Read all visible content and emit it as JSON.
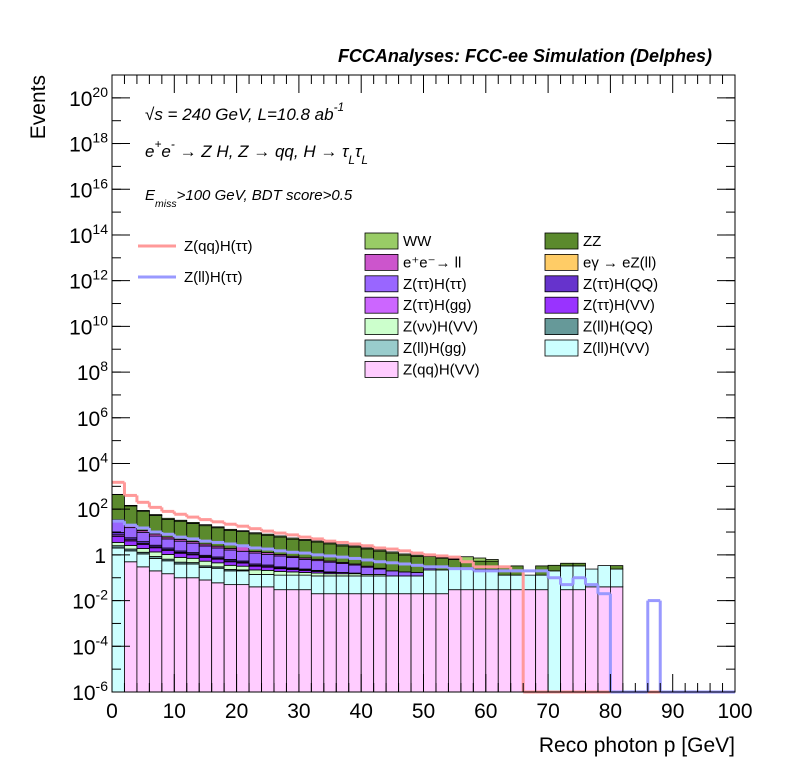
{
  "chart_data": {
    "type": "stacked_histogram",
    "title": "FCCAnalyses: FCC-ee Simulation (Delphes)",
    "x_label": "Reco photon p [GeV]",
    "y_label": "Events",
    "log_y": true,
    "annotations": [
      [
        {
          "text": "√s = 240 GeV, L=10.8 ab"
        },
        {
          "text": "-1",
          "pos": "sup"
        }
      ],
      [
        {
          "text": "e"
        },
        {
          "text": "+",
          "pos": "sup"
        },
        {
          "text": "e"
        },
        {
          "text": "-",
          "pos": "sup"
        },
        {
          "text": " → Z H, Z  → qq, H  → τ"
        },
        {
          "text": "L",
          "pos": "sub"
        },
        {
          "text": "τ"
        },
        {
          "text": "L",
          "pos": "sub"
        }
      ],
      [
        {
          "text": "E"
        },
        {
          "text": "miss",
          "pos": "sub"
        },
        {
          "text": ">100 GeV, BDT score>0.5"
        }
      ]
    ],
    "bins": [
      0,
      2,
      4,
      6,
      8,
      10,
      12,
      14,
      16,
      18,
      20,
      22,
      24,
      26,
      28,
      30,
      32,
      34,
      36,
      38,
      40,
      42,
      44,
      46,
      48,
      50,
      52,
      54,
      56,
      58,
      60,
      62,
      64,
      66,
      68,
      70,
      72,
      74,
      76,
      78,
      80,
      82,
      84,
      86,
      88,
      90,
      92,
      94,
      96,
      98,
      100
    ],
    "xlim": [
      0,
      100
    ],
    "xticks": [
      0,
      10,
      20,
      30,
      40,
      50,
      60,
      70,
      80,
      90,
      100
    ],
    "ylim": [
      1e-06,
      1e+21
    ],
    "yticks": [
      {
        "value": 1e-06,
        "label": "10",
        "exponent": "-6"
      },
      {
        "value": 0.0001,
        "label": "10",
        "exponent": "-4"
      },
      {
        "value": 0.01,
        "label": "10",
        "exponent": "-2"
      },
      1,
      {
        "value": 100.0,
        "label": "10",
        "exponent": "2"
      },
      {
        "value": 10000.0,
        "label": "10",
        "exponent": "4"
      },
      {
        "value": 1000000.0,
        "label": "10",
        "exponent": "6"
      },
      {
        "value": 100000000.0,
        "label": "10",
        "exponent": "8"
      },
      {
        "value": 10000000000.0,
        "label": "10",
        "exponent": "10"
      },
      {
        "value": 1000000000000.0,
        "label": "10",
        "exponent": "12"
      },
      {
        "value": 100000000000000.0,
        "label": "10",
        "exponent": "14"
      },
      {
        "value": 1e+16,
        "label": "10",
        "exponent": "16"
      },
      {
        "value": 1e+18,
        "label": "10",
        "exponent": "18"
      },
      {
        "value": 1e+20,
        "label": "10",
        "exponent": "20"
      }
    ],
    "series": [
      {
        "name": "WW",
        "color": "#99cc66",
        "values": [
          10,
          8,
          6,
          5,
          4,
          3,
          2.5,
          2,
          1.5,
          1.2,
          1,
          0.9,
          0.8,
          0.7,
          0.6,
          0.5,
          0.4,
          0.35,
          0.3,
          0.25,
          0.2,
          0.18,
          0.15,
          0.12,
          0.1,
          0.08,
          0.06,
          0.05,
          0.3,
          0.2,
          0.1,
          0,
          0,
          0,
          0,
          0,
          0,
          0,
          0,
          0,
          0,
          0,
          0,
          0,
          0,
          0,
          0,
          0,
          0,
          0
        ]
      },
      {
        "name": "ZZ",
        "color": "#5b8a2d",
        "values": [
          400,
          120,
          70,
          45,
          30,
          25,
          20,
          16,
          13,
          10,
          8,
          7,
          6,
          5,
          4,
          3.5,
          3,
          2.5,
          2,
          1.8,
          1.5,
          1.2,
          1,
          0.8,
          0.7,
          0.6,
          0.5,
          0.4,
          0.3,
          0.3,
          0.3,
          0.2,
          0.2,
          0,
          0.2,
          0.15,
          0.1,
          0.1,
          0,
          0,
          0.1,
          0,
          0,
          0,
          0,
          0,
          0,
          0,
          0,
          0
        ]
      },
      {
        "name": "e⁺e⁻→ ll",
        "color": "#cc55cc",
        "values": [
          5,
          3,
          2,
          1.5,
          1,
          0.8,
          0.6,
          0.5,
          0.4,
          0.3,
          1,
          0.2,
          0.2,
          0.15,
          0.1,
          0.1,
          0.08,
          0.06,
          0.05,
          0.04,
          0.03,
          0.02,
          0,
          0,
          0,
          0,
          0,
          0,
          0,
          0,
          0,
          0,
          0,
          0,
          0,
          0,
          0,
          0,
          0,
          0,
          0,
          0,
          0,
          0,
          0,
          0,
          0,
          0,
          0,
          0
        ]
      },
      {
        "name": "eγ → eZ(ll)",
        "color": "#ffcc66",
        "values": [
          0,
          0.02,
          0.02,
          0.02,
          0,
          0,
          0,
          0.02,
          0,
          0,
          0,
          0,
          0,
          0,
          0,
          0,
          0,
          0,
          0,
          0,
          0,
          0,
          0,
          0,
          0,
          0,
          0,
          0,
          0,
          0,
          0,
          0,
          0,
          0,
          0,
          0,
          0,
          0,
          0,
          0,
          0,
          0,
          0,
          0,
          0,
          0,
          0,
          0,
          0,
          0
        ]
      },
      {
        "name": "Z(ττ)H(ττ)",
        "color": "#9966ff",
        "values": [
          20,
          10,
          6,
          4,
          3,
          2.5,
          2,
          1.5,
          1.2,
          1,
          0.9,
          0.8,
          0.7,
          0.6,
          0.5,
          0.4,
          0.35,
          0.3,
          0.25,
          0.2,
          0.15,
          0.1,
          0.08,
          0.06,
          0.05,
          0.04,
          0,
          0,
          0,
          0,
          0,
          0,
          0,
          0,
          0,
          0,
          0,
          0,
          0,
          0,
          0,
          0,
          0,
          0,
          0,
          0,
          0,
          0,
          0,
          0
        ]
      },
      {
        "name": "Z(ττ)H(QQ)",
        "color": "#6633cc",
        "values": [
          2,
          1,
          0.6,
          0.4,
          0.3,
          0.2,
          0.15,
          0.1,
          0.1,
          0.08,
          0.06,
          0.05,
          0.04,
          0.03,
          0.02,
          0.02,
          0.01,
          0.01,
          0,
          0,
          0,
          0,
          0,
          0,
          0,
          0,
          0,
          0,
          0,
          0,
          0,
          0,
          0,
          0,
          0,
          0,
          0,
          0,
          0,
          0,
          0,
          0,
          0,
          0,
          0,
          0,
          0,
          0,
          0,
          0
        ]
      },
      {
        "name": "Z(ττ)H(gg)",
        "color": "#cc66ff",
        "values": [
          1,
          0.5,
          0.3,
          0.2,
          0.15,
          0.1,
          0.1,
          0.08,
          0.06,
          0.05,
          0.04,
          0.03,
          0.03,
          0.02,
          0.02,
          0.01,
          0.01,
          0,
          0,
          0,
          0,
          0,
          0,
          0,
          0,
          0,
          0,
          0,
          0,
          0,
          0,
          0,
          0,
          0,
          0,
          0,
          0,
          0,
          0,
          0,
          0,
          0,
          0,
          0,
          0,
          0,
          0,
          0,
          0,
          0
        ]
      },
      {
        "name": "Z(ττ)H(VV)",
        "color": "#9933ff",
        "values": [
          3,
          1.5,
          1,
          0.7,
          0.5,
          0.4,
          0.3,
          0.25,
          0.2,
          0.15,
          0.12,
          0.1,
          0.08,
          0.06,
          0.05,
          0.04,
          0.03,
          0.02,
          0.02,
          0.01,
          0,
          0,
          0,
          0,
          0,
          0,
          0,
          0,
          0,
          0,
          0,
          0,
          0,
          0,
          0,
          0,
          0,
          0,
          0,
          0,
          0,
          0,
          0,
          0,
          0,
          0,
          0,
          0,
          0,
          0
        ]
      },
      {
        "name": "Z(νν)H(VV)",
        "color": "#ccffcc",
        "values": [
          1,
          0.8,
          0.6,
          0.5,
          0.4,
          0.3,
          0.25,
          0.2,
          0.15,
          0.12,
          0.1,
          0.08,
          0.07,
          0.06,
          0.05,
          0.04,
          0.04,
          0.03,
          0.03,
          0.03,
          0.02,
          0.02,
          0,
          0,
          0,
          0,
          0,
          0,
          0,
          0,
          0,
          0,
          0,
          0,
          0,
          0,
          0,
          0,
          0,
          0,
          0,
          0,
          0,
          0,
          0,
          0,
          0,
          0,
          0,
          0
        ]
      },
      {
        "name": "Z(ll)H(QQ)",
        "color": "#669999",
        "values": [
          0.5,
          0.3,
          0.2,
          0.15,
          0.1,
          0.08,
          0.06,
          0.05,
          0.04,
          0.03,
          0.02,
          0,
          0,
          0,
          0,
          0,
          0,
          0,
          0,
          0,
          0,
          0,
          0,
          0,
          0,
          0,
          0,
          0,
          0,
          0,
          0,
          0,
          0,
          0,
          0,
          0,
          0,
          0,
          0,
          0,
          0,
          0,
          0,
          0,
          0,
          0,
          0,
          0,
          0,
          0
        ]
      },
      {
        "name": "Z(ll)H(gg)",
        "color": "#99cccc",
        "values": [
          0.02,
          0,
          0,
          0,
          0,
          0,
          0,
          0,
          0,
          0,
          0,
          0,
          0,
          0,
          0,
          0,
          0,
          0,
          0,
          0,
          0,
          0,
          0,
          0,
          0,
          0,
          0,
          0,
          0,
          0,
          0,
          0,
          0,
          0,
          0,
          0,
          0,
          0,
          0,
          0,
          0,
          0,
          0,
          0,
          0,
          0,
          0,
          0,
          0,
          0
        ]
      },
      {
        "name": "Z(ll)H(VV)",
        "color": "#ccffff",
        "values": [
          2,
          1,
          0.8,
          0.5,
          0.4,
          0.3,
          0.3,
          0.2,
          0.2,
          0.15,
          0.15,
          0.1,
          0.1,
          0.1,
          0.1,
          0.1,
          0.1,
          0.1,
          0.1,
          0.1,
          0.1,
          0.1,
          0.1,
          0.1,
          0.1,
          0.2,
          0.2,
          0.2,
          0.2,
          0.2,
          0.2,
          0.1,
          0.1,
          0.1,
          0.1,
          0.2,
          0.3,
          0.3,
          0.2,
          0.3,
          0.2,
          0,
          0,
          0,
          0,
          0,
          0,
          0,
          0,
          0
        ]
      },
      {
        "name": "Z(qq)H(VV)",
        "color": "#ffccff",
        "values": [
          0,
          0.5,
          0.3,
          0.2,
          0.15,
          0.1,
          0.1,
          0.08,
          0.06,
          0.05,
          0.05,
          0.04,
          0.04,
          0.03,
          0.03,
          0.03,
          0.02,
          0.02,
          0.02,
          0.02,
          0.02,
          0.02,
          0.02,
          0.02,
          0.02,
          0.02,
          0.02,
          0.03,
          0.03,
          0.03,
          0.03,
          0.03,
          0.03,
          0.03,
          0.03,
          0,
          0.03,
          0.03,
          0.04,
          0.04,
          0.04,
          0,
          0,
          0,
          0,
          0,
          0,
          0,
          0,
          0
        ]
      }
    ],
    "lines": [
      {
        "name": "Z(qq)H(ττ)",
        "color": "#ff9999",
        "values": [
          1500,
          400,
          200,
          120,
          80,
          60,
          45,
          35,
          28,
          22,
          18,
          14,
          11,
          9,
          7.5,
          6,
          5,
          4,
          3.5,
          3,
          2.5,
          2,
          1.8,
          1.5,
          1.2,
          1,
          0.9,
          0.8,
          0.5,
          0.3,
          0.3,
          0.3,
          0.2,
          0,
          0,
          0,
          0,
          0,
          0,
          0,
          0,
          0,
          0,
          0,
          0,
          0,
          0,
          0,
          0,
          0
        ]
      },
      {
        "name": "Z(ll)H(ττ)",
        "color": "#9999ff",
        "values": [
          30,
          20,
          15,
          10,
          8,
          6,
          5,
          4,
          3.5,
          3,
          2.5,
          2,
          1.8,
          1.5,
          1.3,
          1.2,
          1,
          0.9,
          0.8,
          0.7,
          0.6,
          0.5,
          0.45,
          0.4,
          0.35,
          0.3,
          0.3,
          0.25,
          0.25,
          0.2,
          0.2,
          0.2,
          0.2,
          0.2,
          0.2,
          0.1,
          0.05,
          0.1,
          0.05,
          0.02,
          0,
          0,
          0,
          0.01,
          0,
          0,
          0,
          0,
          0,
          0
        ]
      }
    ]
  }
}
